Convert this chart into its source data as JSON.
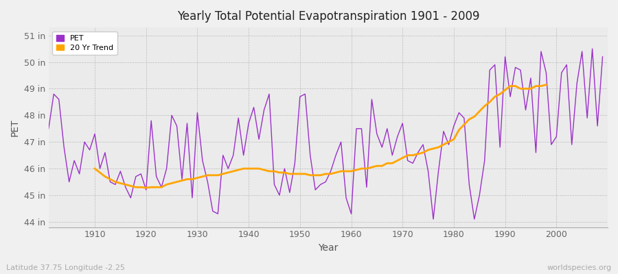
{
  "title": "Yearly Total Potential Evapotranspiration 1901 - 2009",
  "xlabel": "Year",
  "ylabel": "PET",
  "subtitle_left": "Latitude 37.75 Longitude -2.25",
  "subtitle_right": "worldspecies.org",
  "pet_color": "#9B30C8",
  "trend_color": "#FFA500",
  "bg_color": "#F0F0F0",
  "plot_bg_color": "#EBEBEB",
  "ylim": [
    43.8,
    51.3
  ],
  "yticks": [
    44,
    45,
    46,
    47,
    48,
    49,
    50,
    51
  ],
  "ytick_labels": [
    "44 in",
    "45 in",
    "46 in",
    "47 in",
    "48 in",
    "49 in",
    "50 in",
    "51 in"
  ],
  "years": [
    1901,
    1902,
    1903,
    1904,
    1905,
    1906,
    1907,
    1908,
    1909,
    1910,
    1911,
    1912,
    1913,
    1914,
    1915,
    1916,
    1917,
    1918,
    1919,
    1920,
    1921,
    1922,
    1923,
    1924,
    1925,
    1926,
    1927,
    1928,
    1929,
    1930,
    1931,
    1932,
    1933,
    1934,
    1935,
    1936,
    1937,
    1938,
    1939,
    1940,
    1941,
    1942,
    1943,
    1944,
    1945,
    1946,
    1947,
    1948,
    1949,
    1950,
    1951,
    1952,
    1953,
    1954,
    1955,
    1956,
    1957,
    1958,
    1959,
    1960,
    1961,
    1962,
    1963,
    1964,
    1965,
    1966,
    1967,
    1968,
    1969,
    1970,
    1971,
    1972,
    1973,
    1974,
    1975,
    1976,
    1977,
    1978,
    1979,
    1980,
    1981,
    1982,
    1983,
    1984,
    1985,
    1986,
    1987,
    1988,
    1989,
    1990,
    1991,
    1992,
    1993,
    1994,
    1995,
    1996,
    1997,
    1998,
    1999,
    2000,
    2001,
    2002,
    2003,
    2004,
    2005,
    2006,
    2007,
    2008,
    2009
  ],
  "pet": [
    47.5,
    48.8,
    48.6,
    46.8,
    45.5,
    46.3,
    45.8,
    47.0,
    46.7,
    47.3,
    46.0,
    46.6,
    45.5,
    45.4,
    45.9,
    45.3,
    44.9,
    45.7,
    45.8,
    45.2,
    47.8,
    45.7,
    45.3,
    46.0,
    48.0,
    47.6,
    45.6,
    47.7,
    44.9,
    48.1,
    46.3,
    45.5,
    44.4,
    44.3,
    46.5,
    46.0,
    46.5,
    47.9,
    46.5,
    47.7,
    48.3,
    47.1,
    48.2,
    48.8,
    45.4,
    45.0,
    46.0,
    45.1,
    46.2,
    48.7,
    48.8,
    46.5,
    45.2,
    45.4,
    45.5,
    45.9,
    46.5,
    47.0,
    44.9,
    44.3,
    47.5,
    47.5,
    45.3,
    48.6,
    47.3,
    46.8,
    47.5,
    46.5,
    47.2,
    47.7,
    46.3,
    46.2,
    46.6,
    46.9,
    45.9,
    44.1,
    45.9,
    47.4,
    46.9,
    47.6,
    48.1,
    47.9,
    45.4,
    44.1,
    45.0,
    46.3,
    49.7,
    49.9,
    46.8,
    50.2,
    48.7,
    49.8,
    49.7,
    48.2,
    49.4,
    46.6,
    50.4,
    49.6,
    46.9,
    47.2,
    49.6,
    49.9,
    46.9,
    49.2,
    50.4,
    47.9,
    50.5,
    47.6,
    50.2
  ],
  "trend": [
    null,
    null,
    null,
    null,
    null,
    null,
    null,
    null,
    null,
    46.0,
    45.85,
    45.7,
    45.6,
    45.5,
    45.45,
    45.4,
    45.35,
    45.3,
    45.3,
    45.28,
    45.3,
    45.3,
    45.3,
    45.4,
    45.45,
    45.5,
    45.55,
    45.6,
    45.6,
    45.65,
    45.7,
    45.75,
    45.75,
    45.75,
    45.8,
    45.85,
    45.9,
    45.95,
    46.0,
    46.0,
    46.0,
    46.0,
    45.95,
    45.9,
    45.9,
    45.85,
    45.85,
    45.8,
    45.8,
    45.8,
    45.8,
    45.75,
    45.75,
    45.75,
    45.8,
    45.8,
    45.85,
    45.9,
    45.9,
    45.9,
    45.95,
    46.0,
    46.0,
    46.05,
    46.1,
    46.1,
    46.2,
    46.2,
    46.3,
    46.4,
    46.5,
    46.5,
    46.55,
    46.6,
    46.7,
    46.75,
    46.8,
    46.9,
    47.0,
    47.1,
    47.45,
    47.65,
    47.85,
    47.95,
    48.15,
    48.35,
    48.5,
    48.7,
    48.8,
    48.95,
    49.1,
    49.1,
    49.0,
    49.0,
    49.0,
    49.1,
    49.1,
    49.15,
    null,
    null,
    null,
    null,
    null,
    null,
    null,
    null,
    null,
    null,
    null
  ]
}
